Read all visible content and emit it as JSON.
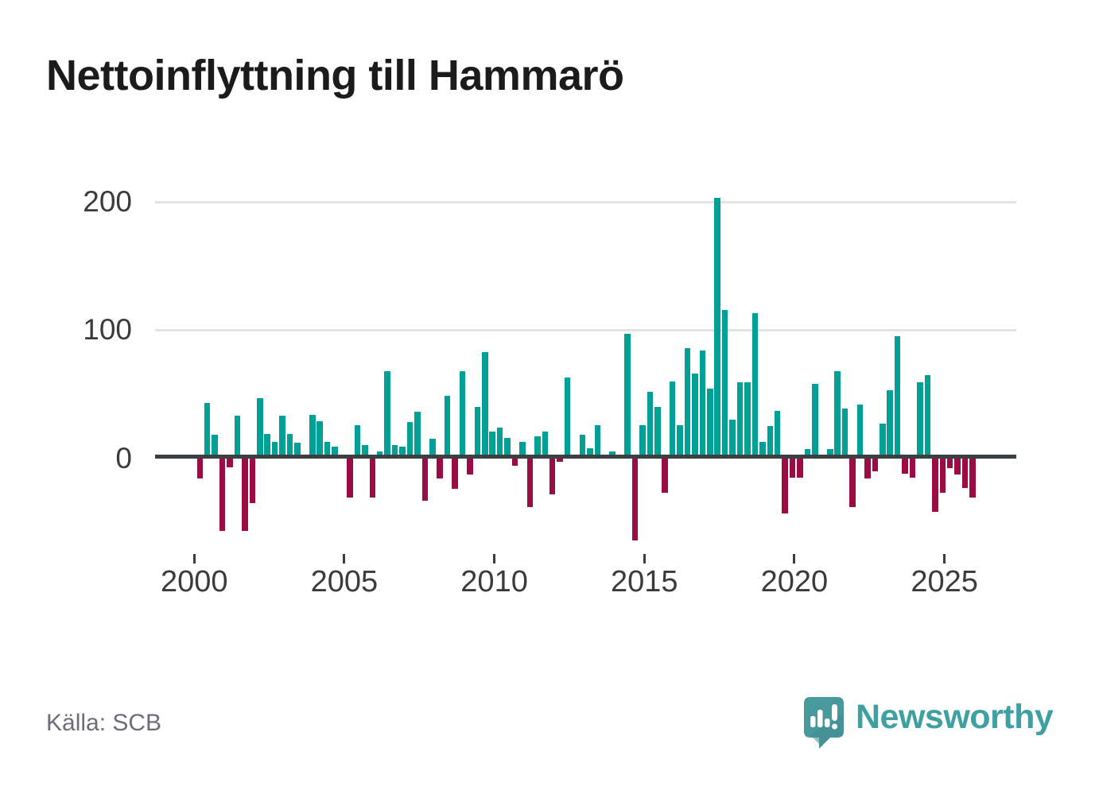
{
  "title": "Nettoinflyttning till Hammarö",
  "source": "Källa: SCB",
  "branding": {
    "name": "Newsworthy",
    "logo": "newsworthy-speech-bubble-chart-icon",
    "text_color": "#3fa0a1",
    "bubble_color": "#47999b"
  },
  "chart_data": {
    "type": "bar",
    "title": "Nettoinflyttning till Hammarö",
    "x_unit": "quarter",
    "x_range": [
      "2000 Q1",
      "2025 Q4"
    ],
    "xlabel": "",
    "ylabel": "",
    "y_ticks": [
      0,
      100,
      200
    ],
    "x_ticks": [
      2000,
      2005,
      2010,
      2015,
      2020,
      2025
    ],
    "ylim": [
      -70,
      210
    ],
    "grid": "horizontal",
    "legend": "none",
    "positive_color": "#00a096",
    "negative_color": "#9b0c45",
    "series": [
      {
        "year": 2000,
        "values": [
          -16,
          43,
          18,
          -57
        ]
      },
      {
        "year": 2001,
        "values": [
          -7,
          33,
          -57,
          -35
        ]
      },
      {
        "year": 2002,
        "values": [
          47,
          19,
          13,
          33
        ]
      },
      {
        "year": 2003,
        "values": [
          19,
          12,
          0,
          34
        ]
      },
      {
        "year": 2004,
        "values": [
          29,
          13,
          9,
          2
        ]
      },
      {
        "year": 2005,
        "values": [
          -31,
          26,
          10,
          -31
        ]
      },
      {
        "year": 2006,
        "values": [
          5,
          68,
          10,
          9
        ]
      },
      {
        "year": 2007,
        "values": [
          28,
          36,
          -33,
          15
        ]
      },
      {
        "year": 2008,
        "values": [
          -16,
          49,
          -24,
          68
        ]
      },
      {
        "year": 2009,
        "values": [
          -13,
          40,
          83,
          21
        ]
      },
      {
        "year": 2010,
        "values": [
          24,
          16,
          -6,
          13
        ]
      },
      {
        "year": 2011,
        "values": [
          -38,
          17,
          21,
          -28
        ]
      },
      {
        "year": 2012,
        "values": [
          -3,
          63,
          0,
          18
        ]
      },
      {
        "year": 2013,
        "values": [
          8,
          26,
          2,
          5
        ]
      },
      {
        "year": 2014,
        "values": [
          0,
          97,
          -64,
          26
        ]
      },
      {
        "year": 2015,
        "values": [
          52,
          40,
          -27,
          60
        ]
      },
      {
        "year": 2016,
        "values": [
          26,
          86,
          66,
          84
        ]
      },
      {
        "year": 2017,
        "values": [
          54,
          203,
          116,
          30
        ]
      },
      {
        "year": 2018,
        "values": [
          59,
          59,
          113,
          13
        ]
      },
      {
        "year": 2019,
        "values": [
          25,
          37,
          -43,
          -15
        ]
      },
      {
        "year": 2020,
        "values": [
          -15,
          7,
          58,
          0
        ]
      },
      {
        "year": 2021,
        "values": [
          7,
          68,
          39,
          -38
        ]
      },
      {
        "year": 2022,
        "values": [
          42,
          -16,
          -10,
          27
        ]
      },
      {
        "year": 2023,
        "values": [
          53,
          95,
          -12,
          -15
        ]
      },
      {
        "year": 2024,
        "values": [
          59,
          65,
          -42,
          -27
        ]
      },
      {
        "year": 2025,
        "values": [
          -8,
          -13,
          -23,
          -31
        ]
      }
    ]
  }
}
